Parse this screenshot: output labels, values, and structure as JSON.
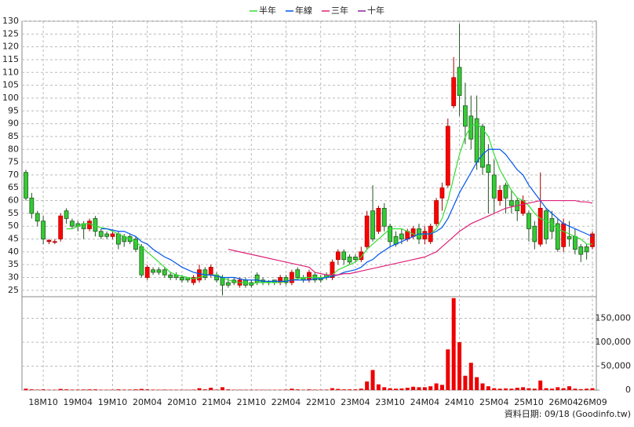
{
  "chart_data": {
    "type": "candlestick",
    "categories": [
      null,
      null,
      null,
      "18M10",
      null,
      null,
      null,
      null,
      null,
      "19M04",
      null,
      null,
      null,
      null,
      null,
      "19M10",
      null,
      null,
      null,
      null,
      null,
      "20M04",
      null,
      null,
      null,
      null,
      null,
      "20M10",
      null,
      null,
      null,
      null,
      null,
      "21M04",
      null,
      null,
      null,
      null,
      null,
      "21M10",
      null,
      null,
      null,
      null,
      null,
      "22M04",
      null,
      null,
      null,
      null,
      null,
      "22M10",
      null,
      null,
      null,
      null,
      null,
      "23M04",
      null,
      null,
      null,
      null,
      null,
      "23M10",
      null,
      null,
      null,
      null,
      null,
      "24M04",
      null,
      null,
      null,
      null,
      null,
      "24M10",
      null,
      null,
      null,
      null,
      null,
      "25M04",
      null,
      null,
      null,
      null,
      null,
      "25M10",
      null,
      null,
      null,
      null,
      null,
      "26M04",
      null,
      null,
      null,
      null,
      "26M09"
    ],
    "open": [
      71,
      61,
      55,
      52,
      44,
      44,
      45,
      56,
      52,
      51,
      51,
      49,
      53,
      48,
      47,
      46,
      47,
      46,
      46,
      45,
      42,
      30,
      33,
      33,
      33,
      31,
      31,
      30,
      30,
      28,
      29,
      33,
      31,
      31,
      30,
      28,
      29,
      27,
      29,
      28,
      31,
      29,
      28.5,
      29,
      28,
      30,
      28,
      33,
      30,
      29,
      31,
      30,
      31,
      30,
      37,
      40,
      38,
      38,
      37,
      42,
      56,
      48,
      57,
      50,
      46,
      47,
      45,
      46,
      49,
      45,
      44,
      51,
      61,
      66,
      97,
      112,
      97,
      93,
      92,
      89,
      74,
      70,
      60,
      66,
      60,
      60,
      55,
      55,
      50,
      43,
      56,
      53,
      51,
      42,
      46,
      46,
      42,
      42,
      42
    ],
    "high": [
      72,
      63,
      56,
      54,
      45,
      45,
      55,
      57,
      53,
      52,
      52,
      53,
      54,
      49,
      48,
      48,
      48,
      47,
      47,
      46,
      43,
      35,
      34,
      34,
      34,
      32,
      32,
      31,
      30,
      31,
      35,
      34,
      35,
      32,
      31,
      30,
      30,
      30,
      30,
      29,
      32,
      30,
      29,
      29,
      31,
      31,
      33,
      34,
      31,
      33,
      32,
      31,
      32,
      37,
      41,
      41,
      39,
      39,
      42,
      56,
      66,
      58,
      59,
      51,
      48,
      49,
      49,
      50,
      51,
      50,
      51,
      61,
      67,
      92,
      116,
      129,
      106,
      101,
      101,
      90,
      82,
      76,
      66,
      67,
      64,
      61,
      62,
      56,
      52,
      71,
      57,
      56,
      53,
      53,
      52,
      49,
      43,
      43,
      48
    ],
    "low": [
      60,
      53,
      50,
      43,
      43,
      43,
      44,
      51,
      49,
      48,
      45,
      48,
      46,
      45,
      45,
      45,
      41,
      42,
      43,
      40,
      30,
      29,
      31,
      31,
      30,
      29,
      29,
      28,
      28,
      27,
      28,
      29,
      30,
      28,
      23,
      26,
      27,
      26,
      26,
      26,
      27,
      27,
      27,
      27,
      27,
      27,
      27,
      29,
      28,
      28,
      28,
      28,
      29,
      29,
      35,
      35,
      35,
      36,
      36,
      41,
      44,
      47,
      48,
      42,
      42,
      43,
      44,
      45,
      43,
      43,
      43,
      50,
      56,
      65,
      96,
      93,
      82,
      80,
      72,
      70,
      55,
      55,
      58,
      55,
      55,
      52,
      54,
      44,
      41,
      42,
      43,
      45,
      40,
      40,
      42,
      39,
      36,
      37,
      41
    ],
    "close": [
      61,
      55,
      52,
      45,
      44.5,
      44,
      54,
      53,
      50,
      50,
      49,
      52,
      48,
      46,
      46,
      47,
      43,
      44,
      44,
      41,
      31,
      34,
      32,
      32,
      31,
      30,
      30,
      29,
      29,
      30,
      33,
      30,
      34,
      29,
      27,
      27,
      28,
      29,
      27,
      27,
      28,
      28,
      28,
      28,
      30,
      28,
      32,
      30,
      29,
      32,
      29,
      29,
      30,
      36,
      40,
      37,
      36,
      37,
      40,
      54,
      45,
      57,
      50,
      44,
      43,
      45,
      48,
      49,
      45,
      48,
      50,
      60,
      65,
      89,
      108,
      101,
      89,
      84,
      75,
      73,
      71,
      61,
      64,
      61,
      58,
      56,
      60,
      49,
      44,
      57,
      45,
      48,
      41,
      51,
      45,
      41,
      39,
      40,
      47
    ],
    "up_color": "#ff0000",
    "down_color": "#33cc33",
    "ylim": [
      22.5,
      130
    ],
    "yticks": [
      25,
      30,
      35,
      40,
      45,
      50,
      55,
      60,
      65,
      70,
      75,
      80,
      85,
      90,
      95,
      100,
      105,
      110,
      115,
      120,
      125,
      130
    ],
    "grid": true,
    "series": [
      {
        "name": "半年",
        "color": "#33dd33",
        "values": [
          null,
          null,
          null,
          null,
          null,
          null,
          null,
          49,
          49,
          50,
          51,
          51,
          50,
          49.5,
          49,
          48,
          47,
          46,
          45,
          44,
          42,
          40,
          38,
          36,
          34,
          32,
          31,
          30.5,
          30,
          29.5,
          30,
          31,
          31,
          31,
          30,
          29,
          28.5,
          28,
          28,
          27.5,
          28,
          28,
          28,
          28,
          28,
          28.5,
          29,
          29.5,
          30,
          30,
          30,
          30,
          30,
          31,
          33,
          34,
          35,
          36,
          38,
          41,
          43,
          45,
          47,
          49,
          49,
          49,
          48,
          47,
          46,
          47,
          47,
          49,
          53,
          60,
          69,
          78,
          85,
          89,
          90,
          88,
          85,
          78,
          72,
          68,
          64,
          61,
          60,
          58,
          55,
          53,
          52,
          51,
          49,
          48,
          47,
          46,
          45,
          43,
          43
        ]
      },
      {
        "name": "年線",
        "color": "#0055ee",
        "values": [
          null,
          null,
          null,
          null,
          null,
          null,
          null,
          null,
          null,
          null,
          null,
          null,
          null,
          49,
          49,
          48.5,
          48,
          48,
          47,
          46,
          44,
          43,
          41,
          39.5,
          38,
          37,
          35.5,
          34,
          33,
          32,
          31.5,
          31,
          31,
          30.5,
          30,
          30,
          30,
          29.5,
          29,
          29,
          29,
          28.5,
          28.5,
          28.5,
          28.5,
          28.5,
          29,
          29,
          29,
          29,
          29.5,
          29.5,
          30,
          30.5,
          31,
          32,
          32.5,
          33,
          34,
          36,
          37,
          39,
          40.5,
          42,
          43,
          44,
          45,
          46,
          47,
          47,
          47,
          48,
          49.5,
          53,
          58,
          63,
          67,
          71,
          75,
          78,
          80,
          80,
          80,
          78,
          75,
          72,
          70,
          66,
          63,
          60,
          57,
          55,
          53,
          51,
          50,
          49,
          48,
          47,
          46
        ]
      },
      {
        "name": "三年",
        "color": "#dd2277",
        "values": [
          null,
          null,
          null,
          null,
          null,
          null,
          null,
          null,
          null,
          null,
          null,
          null,
          null,
          null,
          null,
          null,
          null,
          null,
          null,
          null,
          null,
          null,
          null,
          null,
          null,
          null,
          null,
          null,
          null,
          null,
          null,
          null,
          null,
          null,
          null,
          41,
          40.5,
          40,
          39.5,
          39,
          38.5,
          38,
          37.5,
          37,
          36.5,
          36,
          35.5,
          35,
          34.5,
          34,
          32,
          31.5,
          31,
          31,
          31,
          31.5,
          31.5,
          32,
          32.5,
          33,
          33.5,
          34,
          34.5,
          35,
          35.5,
          36,
          36.5,
          37,
          37.5,
          38,
          39,
          40,
          42,
          44,
          46,
          48,
          49.5,
          51,
          52,
          53,
          54,
          55,
          56,
          57,
          57.5,
          58,
          58.5,
          59,
          59.5,
          60,
          60,
          60,
          60,
          60,
          60,
          60,
          59.5,
          59.5,
          59
        ]
      },
      {
        "name": "十年",
        "color": "#882299",
        "values": [
          null,
          null,
          null,
          null,
          null,
          null,
          null,
          null,
          null,
          null,
          null,
          null,
          null,
          null,
          null,
          null,
          null,
          null,
          null,
          null,
          null,
          null,
          null,
          null,
          null,
          null,
          null,
          null,
          null,
          null,
          null,
          null,
          null,
          null,
          null,
          null,
          null,
          null,
          null,
          null,
          null,
          null,
          null,
          null,
          null,
          null,
          null,
          null,
          null,
          null,
          null,
          null,
          null,
          null,
          null,
          null,
          null,
          null,
          null,
          null,
          null,
          null,
          null,
          null,
          null,
          null,
          null,
          null,
          null,
          null,
          null,
          null,
          null,
          null,
          null,
          null,
          null,
          null,
          null,
          null,
          null,
          null,
          null,
          null,
          null,
          null,
          null,
          null,
          null,
          null,
          null,
          null,
          null,
          null,
          null,
          null,
          null,
          null,
          null
        ]
      }
    ],
    "volume": {
      "color": "#ee0000",
      "values": [
        3000,
        1500,
        1000,
        1500,
        800,
        800,
        2500,
        1500,
        1000,
        1000,
        1200,
        1500,
        1500,
        800,
        800,
        800,
        1500,
        1000,
        1000,
        1500,
        2500,
        1500,
        1000,
        800,
        1000,
        800,
        800,
        700,
        700,
        1000,
        4000,
        1500,
        5000,
        1000,
        6000,
        1500,
        800,
        800,
        800,
        700,
        800,
        700,
        600,
        600,
        800,
        1000,
        3000,
        1500,
        800,
        1500,
        1000,
        800,
        1000,
        4000,
        2500,
        1500,
        1500,
        1500,
        3000,
        18000,
        42000,
        12000,
        6000,
        4000,
        3000,
        3500,
        5000,
        7000,
        6000,
        6000,
        8000,
        14000,
        11000,
        85000,
        192000,
        100000,
        30000,
        57000,
        27000,
        14000,
        8000,
        4000,
        3000,
        3500,
        3000,
        5000,
        6000,
        4000,
        3000,
        20000,
        4000,
        3000,
        6000,
        4000,
        8000,
        3000,
        2000,
        3000,
        4000
      ],
      "ylim": [
        0,
        195000
      ],
      "yticks": [
        0,
        {
          "value": 50000,
          "label": "50,000"
        },
        {
          "value": 100000,
          "label": "100,000"
        },
        {
          "value": 150000,
          "label": "150,000"
        }
      ]
    },
    "note": "資料日期: 09/18 (Goodinfo.tw)"
  }
}
